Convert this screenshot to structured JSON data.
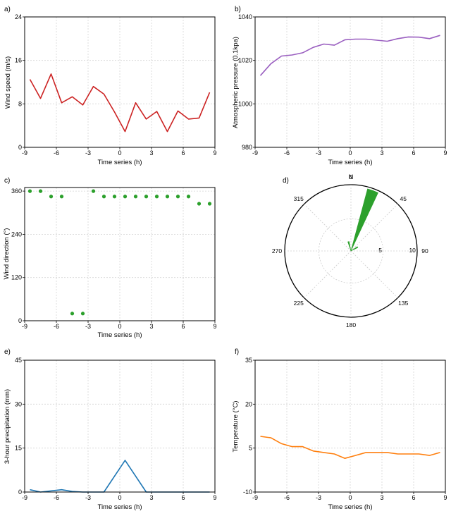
{
  "panels": [
    {
      "id": "a",
      "panel_label": "a)",
      "xlabel": "Time series (h)",
      "ylabel": "Wind speed (m/s)",
      "color": "#cc2222"
    },
    {
      "id": "b",
      "panel_label": "b)",
      "xlabel": "Time series (h)",
      "ylabel": "Atmospheric pressure (0.1kpa)",
      "color": "#9a5fc0"
    },
    {
      "id": "c",
      "panel_label": "c)",
      "xlabel": "Time series (h)",
      "ylabel": "Wind direction (°)",
      "color": "#2ca02c"
    },
    {
      "id": "d",
      "panel_label": "d)",
      "north_label": "N",
      "color": "#2ca02c"
    },
    {
      "id": "e",
      "panel_label": "e)",
      "xlabel": "Time series (h)",
      "ylabel": "3-hour precipitation (mm)",
      "color": "#1f77b4"
    },
    {
      "id": "f",
      "panel_label": "f)",
      "xlabel": "Time series (h)",
      "ylabel": "Temperature (°C)",
      "color": "#ff7f0e"
    }
  ],
  "chart_data": [
    {
      "panel": "a",
      "type": "line",
      "grid": true,
      "xlim": [
        -9,
        9
      ],
      "ylim": [
        0,
        24
      ],
      "xticks": [
        -9,
        -6,
        -3,
        0,
        3,
        6,
        9
      ],
      "yticks": [
        0,
        8,
        16,
        24
      ],
      "x": [
        -8.5,
        -7.5,
        -6.5,
        -5.5,
        -4.5,
        -3.5,
        -2.5,
        -1.5,
        -0.5,
        0.5,
        1.5,
        2.5,
        3.5,
        4.5,
        5.5,
        6.5,
        7.5,
        8.5
      ],
      "y": [
        12.5,
        9,
        13.5,
        8.2,
        9.3,
        7.8,
        11.2,
        9.8,
        6.5,
        2.9,
        8.2,
        5.2,
        6.6,
        2.9,
        6.7,
        5.2,
        5.4,
        10.1
      ]
    },
    {
      "panel": "b",
      "type": "line",
      "grid": true,
      "xlim": [
        -9,
        9
      ],
      "ylim": [
        980,
        1040
      ],
      "xticks": [
        -9,
        -6,
        -3,
        0,
        3,
        6,
        9
      ],
      "yticks": [
        980,
        1000,
        1020,
        1040
      ],
      "x": [
        -8.5,
        -7.5,
        -6.5,
        -5.5,
        -4.5,
        -3.5,
        -2.5,
        -1.5,
        -0.5,
        0.5,
        1.5,
        2.5,
        3.5,
        4.5,
        5.5,
        6.5,
        7.5,
        8.5
      ],
      "y": [
        1013,
        1018.5,
        1022,
        1022.5,
        1023.5,
        1026,
        1027.5,
        1027,
        1029.5,
        1029.8,
        1029.8,
        1029.3,
        1028.8,
        1030,
        1030.8,
        1030.7,
        1030,
        1031.5
      ]
    },
    {
      "panel": "c",
      "type": "scatter",
      "grid": true,
      "xlim": [
        -9,
        9
      ],
      "ylim": [
        0,
        370
      ],
      "xticks": [
        -9,
        -6,
        -3,
        0,
        3,
        6,
        9
      ],
      "yticks": [
        0,
        120,
        240,
        360
      ],
      "x": [
        -8.5,
        -7.5,
        -6.5,
        -5.5,
        -4.5,
        -3.5,
        -2.5,
        -1.5,
        -0.5,
        0.5,
        1.5,
        2.5,
        3.5,
        4.5,
        5.5,
        6.5,
        7.5,
        8.5
      ],
      "y": [
        360,
        360,
        345,
        345,
        20,
        20,
        360,
        345,
        345,
        345,
        345,
        345,
        345,
        345,
        345,
        345,
        325,
        325
      ]
    },
    {
      "panel": "d",
      "type": "polar",
      "angle_ticks": [
        0,
        45,
        90,
        135,
        180,
        225,
        270,
        315
      ],
      "radial_ticks": [
        5,
        10
      ],
      "rmax": 10,
      "grid": true,
      "bars": [
        {
          "direction": 20,
          "width": 10,
          "length": 10
        },
        {
          "direction": 345,
          "width": 8,
          "length": 1.5
        },
        {
          "direction": 60,
          "width": 8,
          "length": 1.2
        }
      ]
    },
    {
      "panel": "e",
      "type": "line",
      "grid": true,
      "xlim": [
        -9,
        9
      ],
      "ylim": [
        0,
        45
      ],
      "xticks": [
        -9,
        -6,
        -3,
        0,
        3,
        6,
        9
      ],
      "yticks": [
        0,
        15,
        30,
        45
      ],
      "x": [
        -8.5,
        -7.5,
        -5.5,
        -4.5,
        -3.5,
        -1.5,
        0.5,
        2.5,
        3.5,
        4.5,
        5.5,
        8.5
      ],
      "y": [
        0.8,
        0,
        0.8,
        0.2,
        0,
        0,
        10.8,
        0,
        0,
        0,
        0,
        0
      ]
    },
    {
      "panel": "f",
      "type": "line",
      "grid": true,
      "xlim": [
        -9,
        9
      ],
      "ylim": [
        -10,
        35
      ],
      "xticks": [
        -9,
        -6,
        -3,
        0,
        3,
        6,
        9
      ],
      "yticks": [
        -10,
        5,
        20,
        35
      ],
      "x": [
        -8.5,
        -7.5,
        -6.5,
        -5.5,
        -4.5,
        -3.5,
        -2.5,
        -1.5,
        -0.5,
        0.5,
        1.5,
        2.5,
        3.5,
        4.5,
        5.5,
        6.5,
        7.5,
        8.5
      ],
      "y": [
        9,
        8.5,
        6.5,
        5.5,
        5.5,
        4,
        3.5,
        3,
        1.5,
        2.5,
        3.5,
        3.5,
        3.5,
        3,
        3,
        3,
        2.5,
        3.5
      ]
    }
  ]
}
